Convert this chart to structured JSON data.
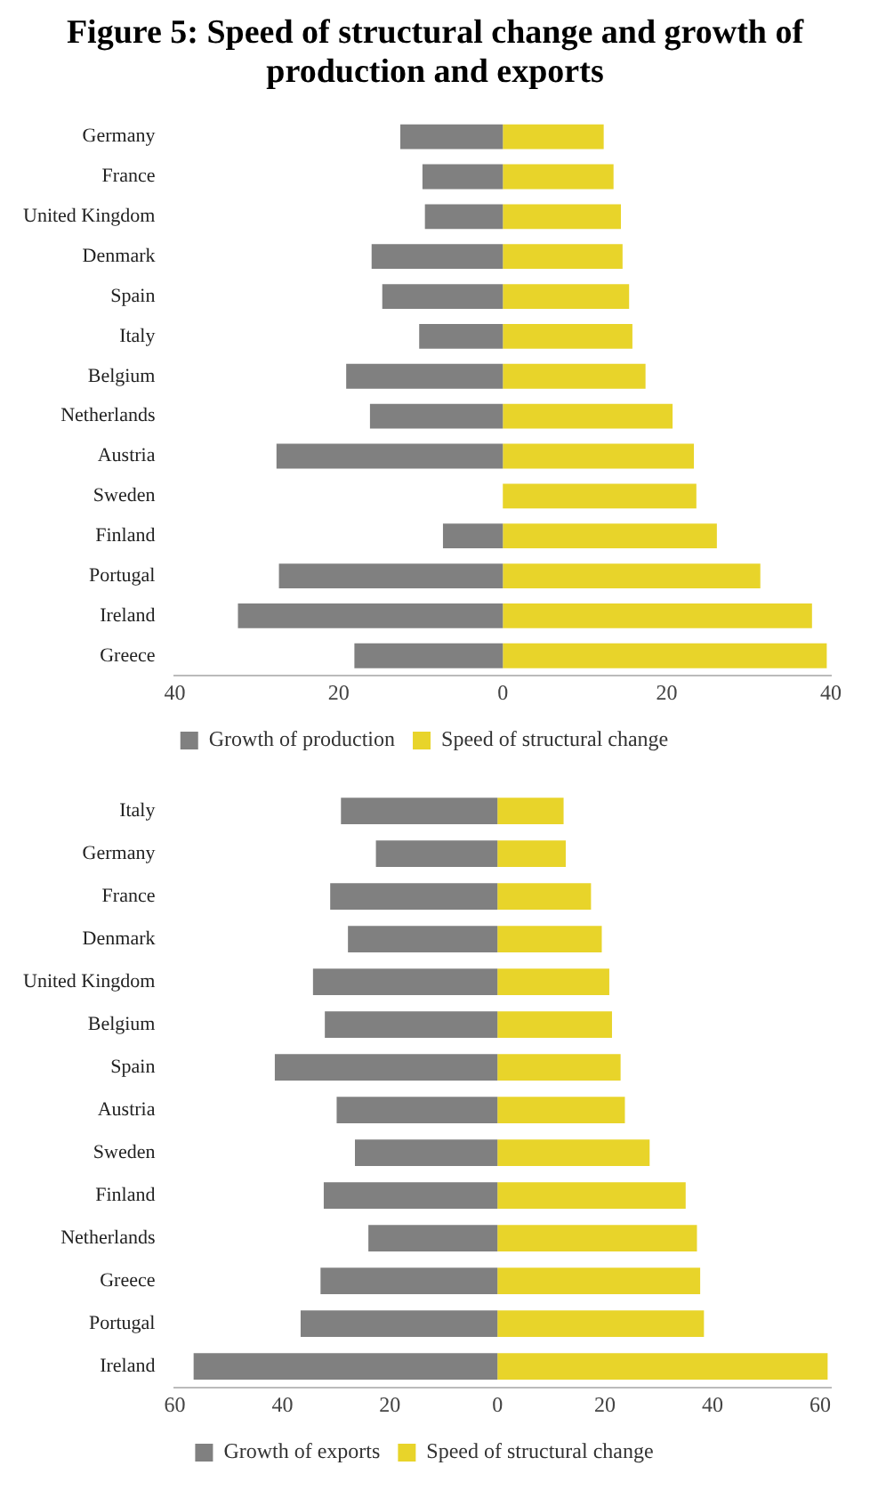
{
  "chart_data": [
    {
      "type": "bar",
      "title": "Figure 5: Speed of structural change and growth of production and exports",
      "orientation": "horizontal",
      "stacked": true,
      "legend": "bottom",
      "categories": [
        "Germany",
        "France",
        "United Kingdom",
        "Denmark",
        "Spain",
        "Italy",
        "Belgium",
        "Netherlands",
        "Austria",
        "Sweden",
        "Finland",
        "Portugal",
        "Ireland",
        "Greece"
      ],
      "series": [
        {
          "name": "Growth of production",
          "color": "#808080",
          "values": [
            -12.5,
            -9.8,
            -9.5,
            -16,
            -14.7,
            -10.2,
            -19.1,
            -16.2,
            -27.6,
            0,
            -7.3,
            -27.3,
            -32.3,
            -18.1
          ]
        },
        {
          "name": "Speed of structural change",
          "color": "#e8d42a",
          "values": [
            12.3,
            13.5,
            14.4,
            14.6,
            15.4,
            15.8,
            17.4,
            20.7,
            23.3,
            23.6,
            26.1,
            31.4,
            37.7,
            39.5
          ]
        }
      ],
      "xlim": [
        -40,
        40
      ],
      "xticks": [
        {
          "value": -40,
          "label": "40"
        },
        {
          "value": -20,
          "label": "20"
        },
        0,
        20,
        40
      ]
    },
    {
      "type": "bar",
      "orientation": "horizontal",
      "stacked": true,
      "legend": "bottom",
      "categories": [
        "Italy",
        "Germany",
        "France",
        "Denmark",
        "United Kingdom",
        "Belgium",
        "Spain",
        "Austria",
        "Sweden",
        "Finland",
        "Netherlands",
        "Greece",
        "Portugal",
        "Ireland"
      ],
      "series": [
        {
          "name": "Growth of exports",
          "color": "#808080",
          "values": [
            -29.1,
            -22.6,
            -31.1,
            -27.8,
            -34.3,
            -32.1,
            -41.4,
            -29.9,
            -26.5,
            -32.3,
            -24,
            -32.9,
            -36.6,
            -56.5
          ]
        },
        {
          "name": "Speed of structural change",
          "color": "#e8d42a",
          "values": [
            12.3,
            12.7,
            17.4,
            19.4,
            20.8,
            21.3,
            22.9,
            23.7,
            28.3,
            35,
            37.1,
            37.7,
            38.4,
            61.4
          ]
        }
      ],
      "xlim": [
        -60,
        62
      ],
      "xticks": [
        {
          "value": -60,
          "label": "60"
        },
        {
          "value": -40,
          "label": "40"
        },
        {
          "value": -20,
          "label": "20"
        },
        0,
        20,
        40,
        60
      ]
    }
  ]
}
